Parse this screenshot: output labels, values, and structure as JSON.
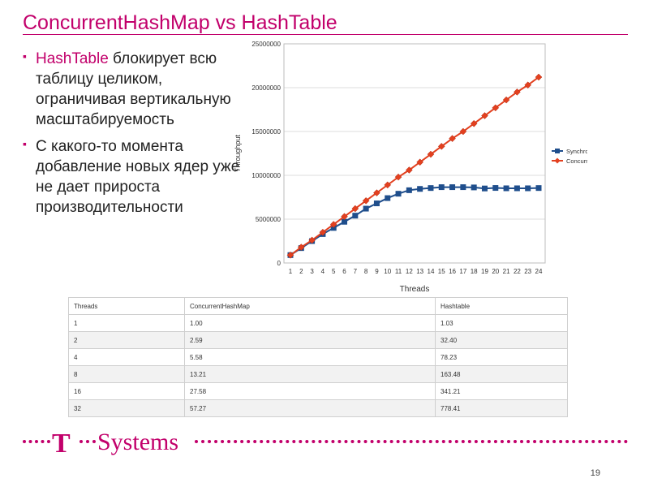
{
  "title": "ConcurrentHashMap vs HashTable",
  "bullets": [
    {
      "highlight": "HashTable",
      "text": " блокирует всю таблицу целиком, ограничивая вертикальную масштабируемость"
    },
    {
      "highlight": "",
      "text": "С какого-то момента добавление новых ядер уже не дает прироста производительности"
    }
  ],
  "chart_data": {
    "type": "line",
    "xlabel": "Threads",
    "ylabel": "Throughput",
    "x": [
      1,
      2,
      3,
      4,
      5,
      6,
      7,
      8,
      9,
      10,
      11,
      12,
      13,
      14,
      15,
      16,
      17,
      18,
      19,
      20,
      21,
      22,
      23,
      24
    ],
    "ylim": [
      0,
      25000000
    ],
    "yticks": [
      "0",
      "5000000",
      "10000000",
      "15000000",
      "20000000",
      "25000000"
    ],
    "grid": true,
    "legend": "right",
    "series": [
      {
        "name": "Synchronized HashMap",
        "color": "#1f4e8c",
        "marker": "square",
        "values": [
          900000,
          1700000,
          2500000,
          3300000,
          4000000,
          4700000,
          5400000,
          6200000,
          6800000,
          7400000,
          7900000,
          8300000,
          8450000,
          8550000,
          8650000,
          8650000,
          8650000,
          8620000,
          8500000,
          8560000,
          8520000,
          8520000,
          8520000,
          8550000
        ]
      },
      {
        "name": "ConcurrentHashMap",
        "color": "#e3401f",
        "marker": "diamond",
        "values": [
          900000,
          1800000,
          2600000,
          3500000,
          4400000,
          5300000,
          6200000,
          7100000,
          8000000,
          8900000,
          9800000,
          10600000,
          11500000,
          12400000,
          13300000,
          14200000,
          15000000,
          15900000,
          16800000,
          17700000,
          18600000,
          19500000,
          20300000,
          21200000
        ]
      }
    ]
  },
  "table": {
    "headers": [
      "Threads",
      "ConcurrentHashMap",
      "Hashtable"
    ],
    "rows": [
      [
        "1",
        "1.00",
        "1.03"
      ],
      [
        "2",
        "2.59",
        "32.40"
      ],
      [
        "4",
        "5.58",
        "78.23"
      ],
      [
        "8",
        "13.21",
        "163.48"
      ],
      [
        "16",
        "27.58",
        "341.21"
      ],
      [
        "32",
        "57.27",
        "778.41"
      ]
    ]
  },
  "brand": {
    "letter": "T",
    "name": "Systems"
  },
  "slide_number": "19",
  "colors": {
    "accent": "#c2006b"
  }
}
